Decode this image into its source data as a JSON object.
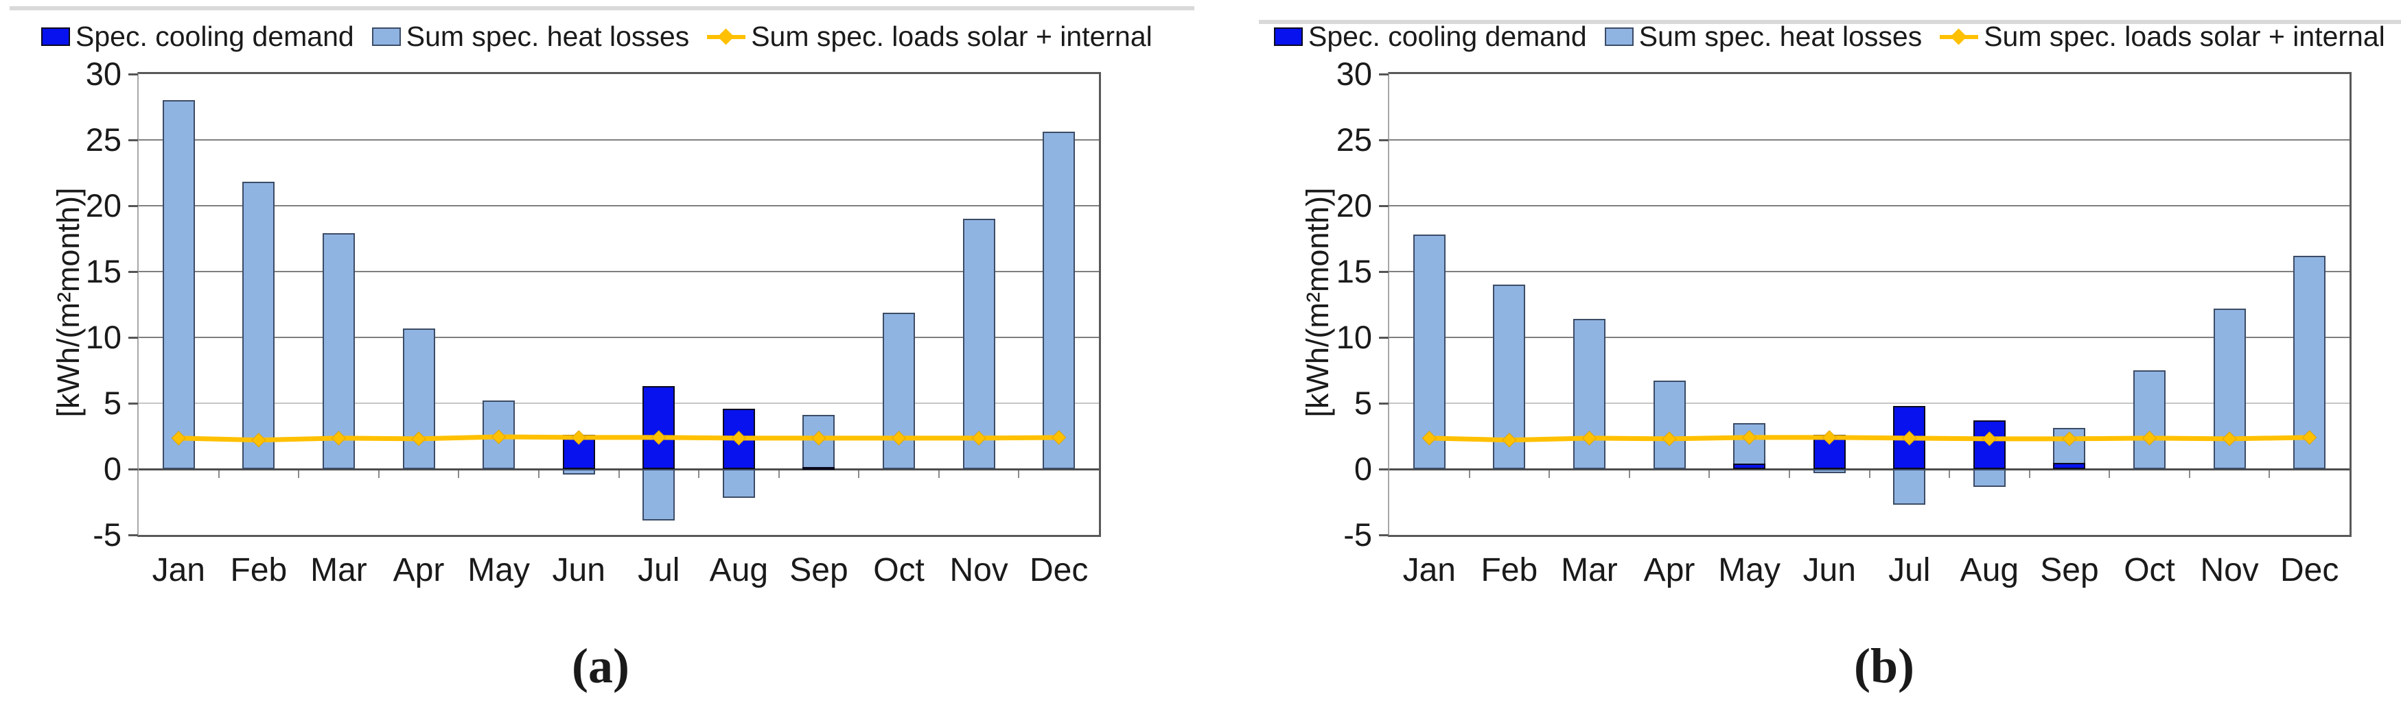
{
  "legend": [
    {
      "label": "Spec. cooling demand",
      "swatch": "cooling-square-icon"
    },
    {
      "label": "Sum spec. heat losses",
      "swatch": "heat-square-icon"
    },
    {
      "label": "Sum spec. loads solar + internal",
      "swatch": "line-diamond-icon"
    }
  ],
  "axis": {
    "y_title": "[kWh/(m²month)]",
    "y_ticks": [
      30,
      25,
      20,
      15,
      10,
      5,
      0,
      -5
    ],
    "y_min": -5,
    "y_max": 30
  },
  "colors": {
    "cooling_fill": "#0712ee",
    "cooling_border": "#0a0a1e",
    "heat_fill": "#90b4e2",
    "heat_border": "#3c4c66",
    "loads_line": "#ffc000",
    "loads_marker_edge": "#dda400",
    "grid": "#7f7f7f",
    "grid_light": "#c6c6c6",
    "zero_axis": "#4d4d4d",
    "frame": "#595959"
  },
  "chart_data": [
    {
      "id": "a",
      "caption": "(a)",
      "type": "bar",
      "categories": [
        "Jan",
        "Feb",
        "Mar",
        "Apr",
        "May",
        "Jun",
        "Jul",
        "Aug",
        "Sep",
        "Oct",
        "Nov",
        "Dec"
      ],
      "ylim": [
        -5,
        30
      ],
      "ylabel": "[kWh/(m²month)]",
      "grid": true,
      "legend_position": "top",
      "series": [
        {
          "name": "Spec. cooling demand",
          "type": "bar",
          "values": [
            0,
            0,
            0,
            0,
            0,
            2.6,
            6.3,
            4.6,
            0.15,
            0,
            0,
            0
          ]
        },
        {
          "name": "Sum spec. heat losses",
          "type": "bar",
          "values": [
            28.0,
            21.8,
            17.9,
            10.7,
            5.2,
            -0.4,
            -3.9,
            -2.2,
            4.1,
            11.9,
            19.0,
            25.6
          ]
        },
        {
          "name": "Sum spec. loads solar + internal",
          "type": "line",
          "values": [
            2.35,
            2.2,
            2.35,
            2.3,
            2.45,
            2.4,
            2.4,
            2.35,
            2.35,
            2.35,
            2.35,
            2.4
          ]
        }
      ]
    },
    {
      "id": "b",
      "caption": "(b)",
      "type": "bar",
      "categories": [
        "Jan",
        "Feb",
        "Mar",
        "Apr",
        "May",
        "Jun",
        "Jul",
        "Aug",
        "Sep",
        "Oct",
        "Nov",
        "Dec"
      ],
      "ylim": [
        -5,
        30
      ],
      "ylabel": "[kWh/(m²month)]",
      "grid": true,
      "legend_position": "top",
      "series": [
        {
          "name": "Spec. cooling demand",
          "type": "bar",
          "values": [
            0,
            0,
            0,
            0,
            0.4,
            2.6,
            4.8,
            3.7,
            0.45,
            0,
            0,
            0
          ]
        },
        {
          "name": "Sum spec. heat losses",
          "type": "bar",
          "values": [
            17.8,
            14.0,
            11.4,
            6.7,
            3.5,
            -0.3,
            -2.7,
            -1.35,
            3.1,
            7.5,
            12.2,
            16.2
          ]
        },
        {
          "name": "Sum spec. loads solar + internal",
          "type": "line",
          "values": [
            2.35,
            2.2,
            2.35,
            2.3,
            2.4,
            2.4,
            2.35,
            2.3,
            2.3,
            2.35,
            2.3,
            2.4
          ]
        }
      ]
    }
  ]
}
